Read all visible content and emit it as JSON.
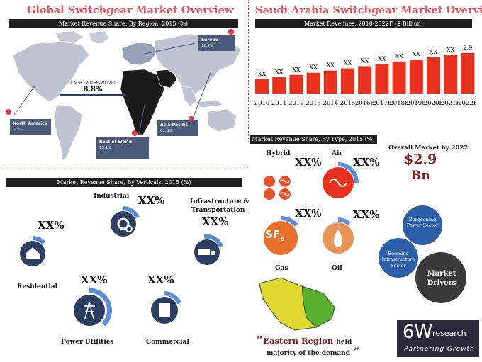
{
  "left": {
    "title": "Global Switchgear Market Overview",
    "band": "Market Revenue Share, By Region, 2015 (%)",
    "cagr_label": "CAGR (2016E-2022F)",
    "cagr_value": "8.8%",
    "regions": {
      "europe": {
        "name": "Europe",
        "share": "18.2%"
      },
      "north_america": {
        "name": "North America",
        "share": "6.3%"
      },
      "asia_pacific": {
        "name": "Asia-Pacific",
        "share": "62.5%"
      },
      "rest_of_world": {
        "name": "Rest of World",
        "share": "13.1%"
      }
    }
  },
  "verticals": {
    "band": "Market Revenue Share, By Verticals, 2015 (%)",
    "items": [
      {
        "label": "Industrial",
        "pct": "XX%",
        "icon": "gears-icon",
        "fill": 0.45
      },
      {
        "label": "Infrastructure &",
        "label2": "Transportation",
        "pct": "XX%",
        "icon": "truck-icon",
        "fill": 0.35
      },
      {
        "label": "Residential",
        "pct": "XX%",
        "icon": "house-icon",
        "fill": 0.25
      },
      {
        "label": "Power Utilities",
        "pct": "XX%",
        "icon": "power-tower-icon",
        "fill": 0.5
      },
      {
        "label": "Commercial",
        "pct": "XX%",
        "icon": "building-icon",
        "fill": 0.3
      }
    ]
  },
  "right": {
    "title": "Saudi Arabia Switchgear Market Overview",
    "band": "Market Revenues, 2010-2022F ($ Billion)",
    "type_band": "Market Revenue Share, By Type, 2015 (%)",
    "types": [
      {
        "label": "Hybrid",
        "pct": "XX%"
      },
      {
        "label": "Air",
        "pct": "XX%"
      },
      {
        "label": "Gas",
        "pct": "XX%"
      },
      {
        "label": "Oil",
        "pct": "XX%"
      }
    ],
    "overall_label": "Overall Market by 2022",
    "overall_value": "$2.9",
    "overall_unit": "Bn",
    "gears": {
      "g1": "Burgeoning",
      "g1b": "Power Sector",
      "g2": "Booming",
      "g2b": "Infrastructure",
      "g2c": "Sector",
      "g3": "Market",
      "g3b": "Drivers"
    },
    "region_quote": "Eastern Region",
    "region_quote2": "held",
    "region_quote3": "majority of the demand",
    "logo_main": "6W",
    "logo_sub": "research",
    "logo_tag": "Partnering Growth",
    "sf_text": "SF",
    "sf_sub": "6"
  },
  "chart_data": {
    "type": "bar",
    "title": "Market Revenues, 2010-2022F ($ Billion)",
    "categories": [
      "2010",
      "2011",
      "2012",
      "2013",
      "2014",
      "2015",
      "2016E",
      "2017F",
      "2018F",
      "2019F",
      "2020F",
      "2021F",
      "2022F"
    ],
    "labels": [
      "XX",
      "XX",
      "XX",
      "XX",
      "XX",
      "XX",
      "XX",
      "XX",
      "XX",
      "XX",
      "XX",
      "XX",
      "2.9"
    ],
    "bar_color": "#e8321e"
  }
}
